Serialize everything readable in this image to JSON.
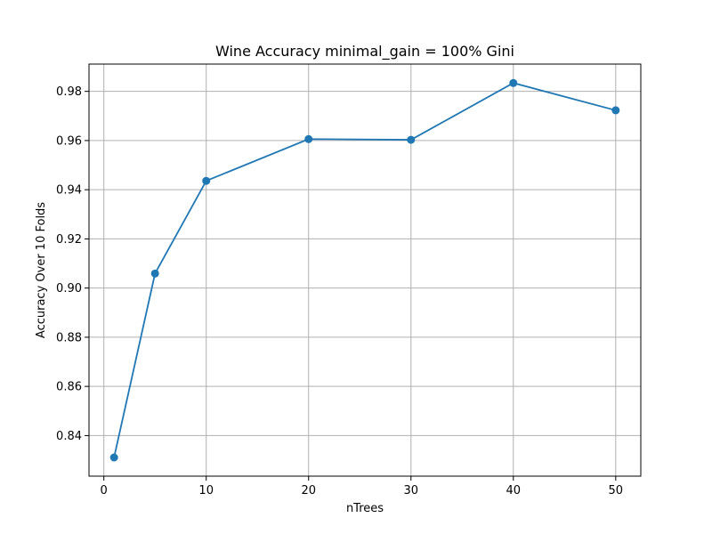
{
  "chart_data": {
    "type": "line",
    "title": "Wine Accuracy minimal_gain = 100% Gini",
    "xlabel": "nTrees",
    "ylabel": "Accuracy Over 10 Folds",
    "x": [
      1,
      5,
      10,
      20,
      30,
      40,
      50
    ],
    "series": [
      {
        "values": [
          0.8311,
          0.9059,
          0.9436,
          0.9606,
          0.9603,
          0.9834,
          0.9723
        ]
      }
    ],
    "xlim": [
      -1.45,
      52.45
    ],
    "ylim": [
      0.8235,
      0.9911
    ],
    "xticks": [
      0,
      10,
      20,
      30,
      40,
      50
    ],
    "yticks": [
      0.84,
      0.86,
      0.88,
      0.9,
      0.92,
      0.94,
      0.96,
      0.98
    ],
    "grid": true,
    "line_color": "#1f77b4"
  }
}
